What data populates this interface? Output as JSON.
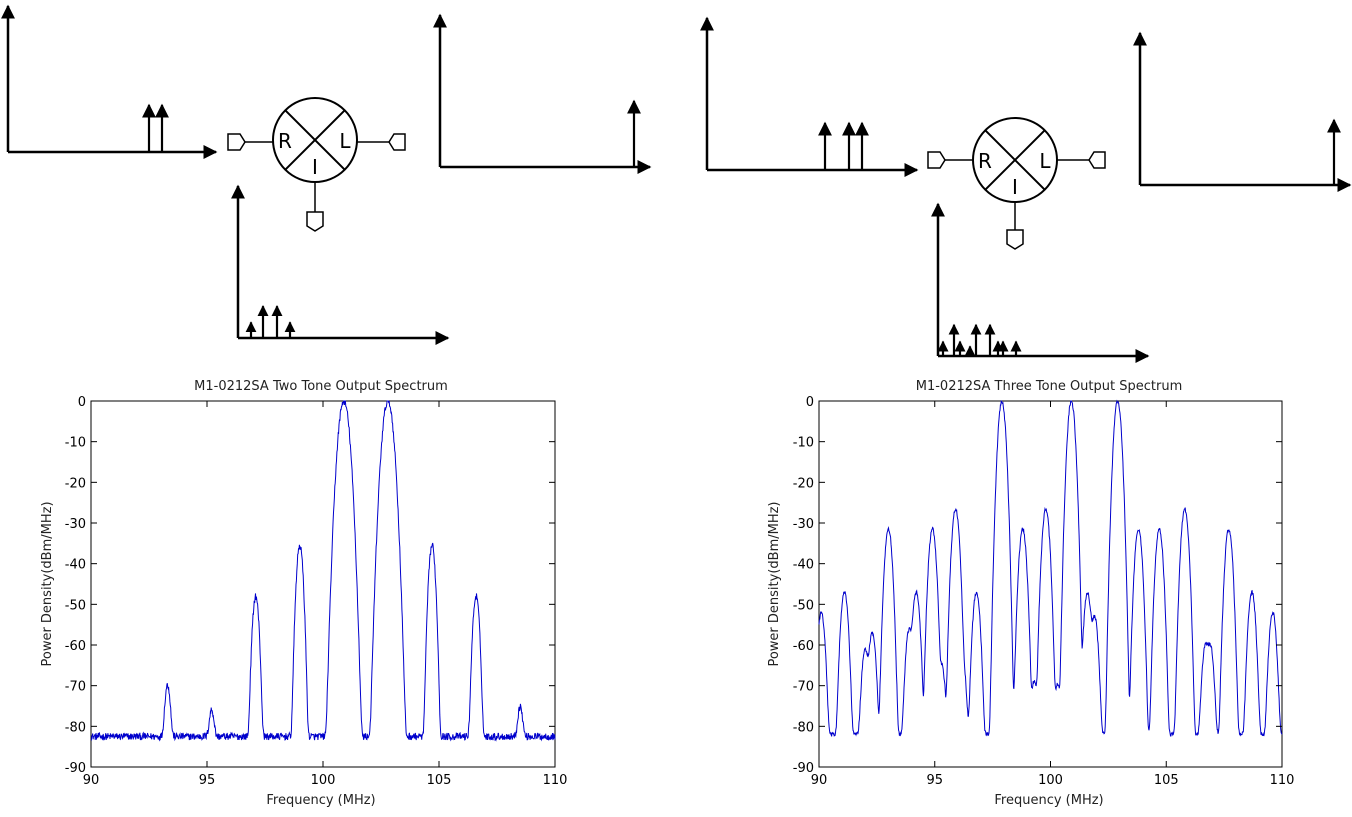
{
  "diagrams": [
    {
      "mixer": {
        "r": "R",
        "l": "L",
        "i": "I"
      },
      "rf_tones": [
        1,
        1
      ],
      "lo_tones": [
        1
      ],
      "if_tones": [
        0.32,
        0.65,
        0.65,
        0.32
      ]
    },
    {
      "mixer": {
        "r": "R",
        "l": "L",
        "i": "I"
      },
      "rf_tones": [
        1,
        1,
        1
      ],
      "lo_tones": [
        1
      ],
      "if_tones": [
        0.3,
        0.65,
        0.3,
        0.2,
        0.65,
        0.65,
        0.3,
        0.3,
        0.3
      ]
    }
  ],
  "chart_data": [
    {
      "type": "line",
      "title": "M1-0212SA Two Tone Output Spectrum",
      "xlabel": "Frequency (MHz)",
      "ylabel": "Power Density(dBm/MHz)",
      "xlim": [
        90,
        110
      ],
      "ylim": [
        -90,
        0
      ],
      "xticks": [
        90,
        95,
        100,
        105,
        110
      ],
      "yticks": [
        0,
        -10,
        -20,
        -30,
        -40,
        -50,
        -60,
        -70,
        -80,
        -90
      ],
      "grid": false,
      "line_color": "#0000cc",
      "noise_floor": -82.5,
      "peaks": [
        {
          "x": 93.3,
          "y": -70
        },
        {
          "x": 95.2,
          "y": -77
        },
        {
          "x": 97.1,
          "y": -48
        },
        {
          "x": 99.0,
          "y": -35.5
        },
        {
          "x": 100.9,
          "y": 0
        },
        {
          "x": 102.8,
          "y": 0
        },
        {
          "x": 104.7,
          "y": -35.5
        },
        {
          "x": 106.6,
          "y": -48
        },
        {
          "x": 108.5,
          "y": -76
        }
      ]
    },
    {
      "type": "line",
      "title": "M1-0212SA Three Tone Output Spectrum",
      "xlabel": "Frequency (MHz)",
      "ylabel": "Power Density(dBm/MHz)",
      "xlim": [
        90,
        110
      ],
      "ylim": [
        -90,
        0
      ],
      "xticks": [
        90,
        95,
        100,
        105,
        110
      ],
      "yticks": [
        0,
        -10,
        -20,
        -30,
        -40,
        -50,
        -60,
        -70,
        -80,
        -90
      ],
      "grid": false,
      "line_color": "#0000cc",
      "noise_floor": -82,
      "peaks": [
        {
          "x": 90.1,
          "y": -52
        },
        {
          "x": 91.1,
          "y": -47
        },
        {
          "x": 92.0,
          "y": -61
        },
        {
          "x": 92.3,
          "y": -57
        },
        {
          "x": 93.0,
          "y": -31.5
        },
        {
          "x": 93.9,
          "y": -56
        },
        {
          "x": 94.2,
          "y": -47
        },
        {
          "x": 94.9,
          "y": -31.5
        },
        {
          "x": 95.3,
          "y": -65
        },
        {
          "x": 95.9,
          "y": -26.5
        },
        {
          "x": 96.2,
          "y": -64
        },
        {
          "x": 96.8,
          "y": -47
        },
        {
          "x": 97.9,
          "y": 0
        },
        {
          "x": 98.4,
          "y": -74
        },
        {
          "x": 98.8,
          "y": -31.5
        },
        {
          "x": 99.3,
          "y": -69
        },
        {
          "x": 99.8,
          "y": -26.5
        },
        {
          "x": 100.3,
          "y": -70
        },
        {
          "x": 100.9,
          "y": 0
        },
        {
          "x": 101.6,
          "y": -47
        },
        {
          "x": 101.9,
          "y": -53
        },
        {
          "x": 102.9,
          "y": 0
        },
        {
          "x": 103.8,
          "y": -31.5
        },
        {
          "x": 104.7,
          "y": -31.5
        },
        {
          "x": 105.8,
          "y": -26.5
        },
        {
          "x": 106.7,
          "y": -60
        },
        {
          "x": 106.9,
          "y": -60
        },
        {
          "x": 107.7,
          "y": -31.5
        },
        {
          "x": 108.7,
          "y": -47
        },
        {
          "x": 109.6,
          "y": -52
        }
      ]
    }
  ]
}
